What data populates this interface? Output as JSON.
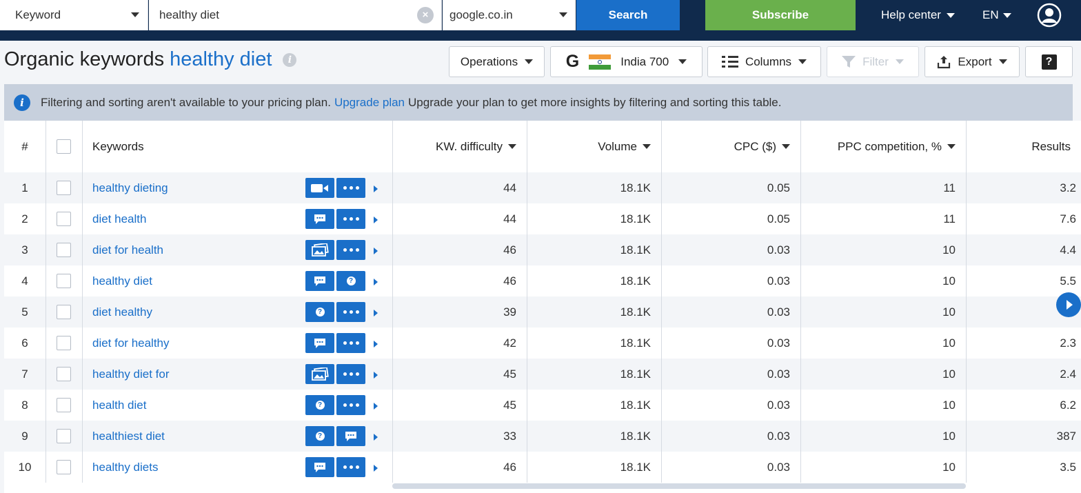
{
  "topbar": {
    "search_type": "Keyword",
    "query": "healthy diet",
    "database": "google.co.in",
    "search_label": "Search",
    "subscribe_label": "Subscribe",
    "help_label": "Help center",
    "lang_label": "EN"
  },
  "header": {
    "title_prefix": "Organic keywords",
    "title_keyword": "healthy diet",
    "info_glyph": "i"
  },
  "toolbar": {
    "operations": "Operations",
    "google_glyph": "G",
    "region": "India 700",
    "columns": "Columns",
    "filter": "Filter",
    "export": "Export",
    "help": "?"
  },
  "notice": {
    "icon": "i",
    "text_before": "Filtering and sorting aren't available to your pricing plan.",
    "link": "Upgrade plan",
    "text_after": "Upgrade your plan to get more insights by filtering and sorting this table."
  },
  "table": {
    "headers": {
      "num": "#",
      "keywords": "Keywords",
      "difficulty": "KW. difficulty",
      "volume": "Volume",
      "cpc": "CPC ($)",
      "ppc": "PPC competition, %",
      "results": "Results"
    },
    "rows": [
      {
        "n": "1",
        "keyword": "healthy dieting",
        "icon1": "video",
        "icon2": "dots",
        "difficulty": "44",
        "volume": "18.1K",
        "cpc": "0.05",
        "ppc": "11",
        "results": "3.2"
      },
      {
        "n": "2",
        "keyword": "diet health",
        "icon1": "comment",
        "icon2": "dots",
        "difficulty": "44",
        "volume": "18.1K",
        "cpc": "0.05",
        "ppc": "11",
        "results": "7.6"
      },
      {
        "n": "3",
        "keyword": "diet for health",
        "icon1": "images",
        "icon2": "dots",
        "difficulty": "46",
        "volume": "18.1K",
        "cpc": "0.03",
        "ppc": "10",
        "results": "4.4"
      },
      {
        "n": "4",
        "keyword": "healthy diet",
        "icon1": "comment",
        "icon2": "question",
        "difficulty": "46",
        "volume": "18.1K",
        "cpc": "0.03",
        "ppc": "10",
        "results": "5.5"
      },
      {
        "n": "5",
        "keyword": "diet healthy",
        "icon1": "question",
        "icon2": "dots",
        "difficulty": "39",
        "volume": "18.1K",
        "cpc": "0.03",
        "ppc": "10",
        "results": ""
      },
      {
        "n": "6",
        "keyword": "diet for healthy",
        "icon1": "comment",
        "icon2": "dots",
        "difficulty": "42",
        "volume": "18.1K",
        "cpc": "0.03",
        "ppc": "10",
        "results": "2.3"
      },
      {
        "n": "7",
        "keyword": "healthy diet for",
        "icon1": "images",
        "icon2": "dots",
        "difficulty": "45",
        "volume": "18.1K",
        "cpc": "0.03",
        "ppc": "10",
        "results": "2.4"
      },
      {
        "n": "8",
        "keyword": "health diet",
        "icon1": "question",
        "icon2": "dots",
        "difficulty": "45",
        "volume": "18.1K",
        "cpc": "0.03",
        "ppc": "10",
        "results": "6.2"
      },
      {
        "n": "9",
        "keyword": "healthiest diet",
        "icon1": "question",
        "icon2": "comment",
        "difficulty": "33",
        "volume": "18.1K",
        "cpc": "0.03",
        "ppc": "10",
        "results": "387"
      },
      {
        "n": "10",
        "keyword": "healthy diets",
        "icon1": "comment",
        "icon2": "dots",
        "difficulty": "46",
        "volume": "18.1K",
        "cpc": "0.03",
        "ppc": "10",
        "results": "3.5"
      }
    ]
  },
  "colors": {
    "brand_navy": "#102a4c",
    "accent_blue": "#1a6fc9",
    "subscribe_green": "#6ab04c",
    "notice_bg": "#c7d0dd"
  }
}
